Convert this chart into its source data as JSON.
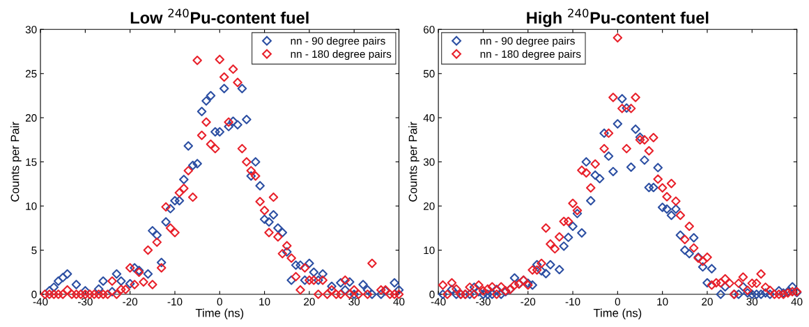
{
  "chart_data": [
    {
      "type": "scatter",
      "title": "Low $^{240}$Pu-content fuel",
      "xlabel": "Time (ns)",
      "ylabel": "Counts per Pair",
      "xlim": [
        -40,
        40
      ],
      "xticks": [
        -40,
        -30,
        -20,
        -10,
        0,
        10,
        20,
        30,
        40
      ],
      "ylim": [
        0,
        30
      ],
      "yticks": [
        0,
        5,
        10,
        15,
        20,
        25,
        30
      ],
      "grid": false,
      "legend": "top right",
      "marker": "diamond",
      "series": [
        {
          "name": "nn - 90 degree pairs",
          "color": "#2b4ea2",
          "x": [
            -38,
            -37,
            -36,
            -35,
            -34,
            -32,
            -30,
            -27,
            -26,
            -24,
            -23,
            -22,
            -20,
            -19,
            -18,
            -16,
            -15,
            -14,
            -13,
            -12,
            -11,
            -10,
            -9,
            -8,
            -7,
            -6,
            -5,
            -4,
            -3,
            -2,
            -1,
            0,
            1,
            2,
            3,
            4,
            5,
            6,
            7,
            8,
            9,
            10,
            11,
            12,
            13,
            14,
            15,
            16,
            17,
            18,
            19,
            20,
            21,
            22,
            23,
            25,
            27,
            28,
            29,
            30,
            32,
            33,
            34,
            36,
            37,
            39,
            40
          ],
          "values": [
            0.4,
            0.8,
            1.5,
            1.9,
            2.3,
            1.1,
            0.4,
            0.6,
            1.5,
            0.3,
            2.3,
            1.5,
            1.2,
            3.0,
            2.7,
            2.3,
            7.2,
            6.7,
            3.6,
            8.2,
            9.7,
            10.6,
            10.6,
            13.0,
            16.8,
            14.6,
            14.8,
            20.7,
            21.9,
            22.5,
            18.4,
            18.4,
            23.3,
            19.0,
            19.6,
            19.2,
            23.3,
            19.8,
            13.4,
            15.0,
            12.3,
            8.5,
            8.2,
            9.0,
            7.5,
            7.0,
            4.8,
            1.6,
            3.3,
            3.3,
            1.6,
            3.5,
            2.5,
            1.6,
            2.3,
            0.9,
            1.3,
            0.5,
            1.4,
            0.0,
            1.1,
            0.5,
            0.0,
            0.0,
            0.4,
            1.3,
            0.5
          ]
        },
        {
          "name": "nn - 180 degree pairs",
          "color": "#e8202a",
          "x": [
            -39,
            -38,
            -37,
            -36,
            -35,
            -34,
            -33,
            -32,
            -31,
            -30,
            -29,
            -28,
            -27,
            -26,
            -25,
            -24,
            -23,
            -22,
            -21,
            -20,
            -19,
            -18,
            -17,
            -16,
            -15,
            -14,
            -13,
            -12,
            -11,
            -10,
            -9,
            -8,
            -7,
            -6,
            -5,
            -4,
            -3,
            -2,
            -1,
            0,
            1,
            2,
            3,
            4,
            5,
            6,
            7,
            8,
            9,
            10,
            11,
            12,
            13,
            14,
            15,
            16,
            17,
            18,
            19,
            20,
            21,
            22,
            23,
            24,
            25,
            26,
            27,
            28,
            29,
            30,
            31,
            33,
            34,
            36,
            37,
            38,
            39,
            40
          ],
          "values": [
            0,
            0,
            0,
            0,
            0,
            0.5,
            0,
            0,
            0,
            0,
            0,
            0,
            0,
            0,
            0,
            1.5,
            0,
            0.55,
            0.55,
            3.0,
            1.1,
            2.5,
            1.4,
            5.0,
            1.1,
            5.9,
            3.0,
            9.9,
            7.5,
            7.0,
            11.5,
            12.0,
            14.0,
            11.0,
            26.5,
            18.0,
            19.5,
            17.0,
            16.5,
            26.6,
            24.6,
            19.5,
            25.5,
            24.0,
            16.5,
            15.0,
            14.0,
            13.4,
            10.5,
            9.5,
            7.0,
            11.0,
            6.5,
            4.6,
            5.5,
            4.1,
            2.0,
            0.5,
            3.0,
            1.6,
            1.6,
            0,
            1.6,
            0,
            0.5,
            0,
            0,
            1.6,
            0,
            0.5,
            0,
            0,
            3.5,
            0.5,
            0.5,
            0,
            0,
            0
          ]
        }
      ]
    },
    {
      "type": "scatter",
      "title": "High $^{240}$Pu-content fuel",
      "xlabel": "Time (ns)",
      "ylabel": "Counts per Pair",
      "xlim": [
        -40,
        40
      ],
      "xticks": [
        -40,
        -30,
        -20,
        -10,
        0,
        10,
        20,
        30,
        40
      ],
      "ylim": [
        0,
        60
      ],
      "yticks": [
        0,
        10,
        20,
        30,
        40,
        50,
        60
      ],
      "grid": false,
      "legend": "top left",
      "marker": "diamond",
      "series": [
        {
          "name": "nn - 90 degree pairs",
          "color": "#2b4ea2",
          "x": [
            -39,
            -37,
            -36,
            -35,
            -34,
            -33,
            -32,
            -31,
            -30,
            -29,
            -28,
            -27,
            -26,
            -25,
            -24,
            -23,
            -22,
            -21,
            -20,
            -19,
            -18,
            -17,
            -16,
            -15,
            -14,
            -13,
            -12,
            -11,
            -10,
            -9,
            -8,
            -7,
            -6,
            -5,
            -4,
            -3,
            -2,
            -1,
            0,
            1,
            2,
            3,
            4,
            5,
            6,
            7,
            8,
            9,
            10,
            11,
            12,
            13,
            14,
            15,
            16,
            17,
            18,
            19,
            20,
            21,
            22,
            23,
            24,
            26,
            27,
            28,
            29,
            30,
            31,
            32,
            33,
            34,
            36,
            37,
            38,
            39,
            40
          ],
          "values": [
            0,
            1.1,
            0,
            0,
            0,
            0,
            1.6,
            0.6,
            0,
            0,
            0,
            1.1,
            0,
            0.6,
            1.1,
            3.7,
            2.4,
            3.2,
            2.5,
            2.1,
            6.7,
            5.3,
            4.7,
            6.7,
            null,
            5.6,
            10.9,
            12.9,
            15.4,
            18.3,
            13.9,
            30.0,
            21.2,
            27.0,
            26.2,
            36.5,
            31.3,
            27.8,
            38.6,
            44.3,
            42.2,
            28.8,
            37.4,
            35.6,
            30.4,
            24.2,
            24.2,
            28.7,
            19.7,
            19.3,
            17.9,
            19.3,
            13.4,
            10.0,
            9.2,
            12.8,
            8.4,
            6.2,
            2.6,
            5.8,
            null,
            0,
            1.7,
            0,
            0,
            1.7,
            0.3,
            0,
            0,
            0,
            0.3,
            0,
            0.8,
            0.3,
            0.6,
            1.7,
            0.4
          ]
        },
        {
          "name": "nn - 180 degree pairs",
          "color": "#e8202a",
          "x": [
            -39,
            -38,
            -37,
            -36,
            -35,
            -34,
            -33,
            -32,
            -31,
            -30,
            -29,
            -28,
            -27,
            -26,
            -25,
            -24,
            -23,
            -22,
            -21,
            -20,
            -19,
            -18,
            -17,
            -16,
            -15,
            -14,
            -13,
            -12,
            -11,
            -10,
            -9,
            -8,
            -7,
            -6,
            -5,
            -3,
            -2,
            -1,
            0,
            1,
            2,
            3,
            4,
            5,
            6,
            7,
            8,
            9,
            10,
            11,
            12,
            13,
            14,
            15,
            16,
            17,
            18,
            19,
            20,
            21,
            22,
            23,
            24,
            25,
            26,
            27,
            28,
            29,
            30,
            31,
            32,
            33,
            34,
            35,
            36,
            37,
            38,
            39,
            40
          ],
          "values": [
            2.1,
            0,
            2.6,
            1.2,
            0,
            0,
            1.6,
            0,
            2.1,
            0.8,
            1.2,
            1.7,
            0,
            1.7,
            0.8,
            1.1,
            2.1,
            2.3,
            3.2,
            2.1,
            5.5,
            5.5,
            7.0,
            15.0,
            11.4,
            10.3,
            13.0,
            16.5,
            16.5,
            20.6,
            19.0,
            28.1,
            27.5,
            24.1,
            29.5,
            33.0,
            36.5,
            44.6,
            58.1,
            42.1,
            33.0,
            42.1,
            44.6,
            35.0,
            35.0,
            32.5,
            35.5,
            26.1,
            24.1,
            22.1,
            25.1,
            21.1,
            17.9,
            12.4,
            15.4,
            10.5,
            8.2,
            7.5,
            8.4,
            2.1,
            2.6,
            2.6,
            3.5,
            2.5,
            0,
            2.5,
            3.9,
            0.9,
            2.5,
            2.5,
            4.6,
            1.6,
            0.9,
            0,
            0,
            0,
            0.3,
            0.6,
            0.6
          ]
        }
      ]
    }
  ]
}
